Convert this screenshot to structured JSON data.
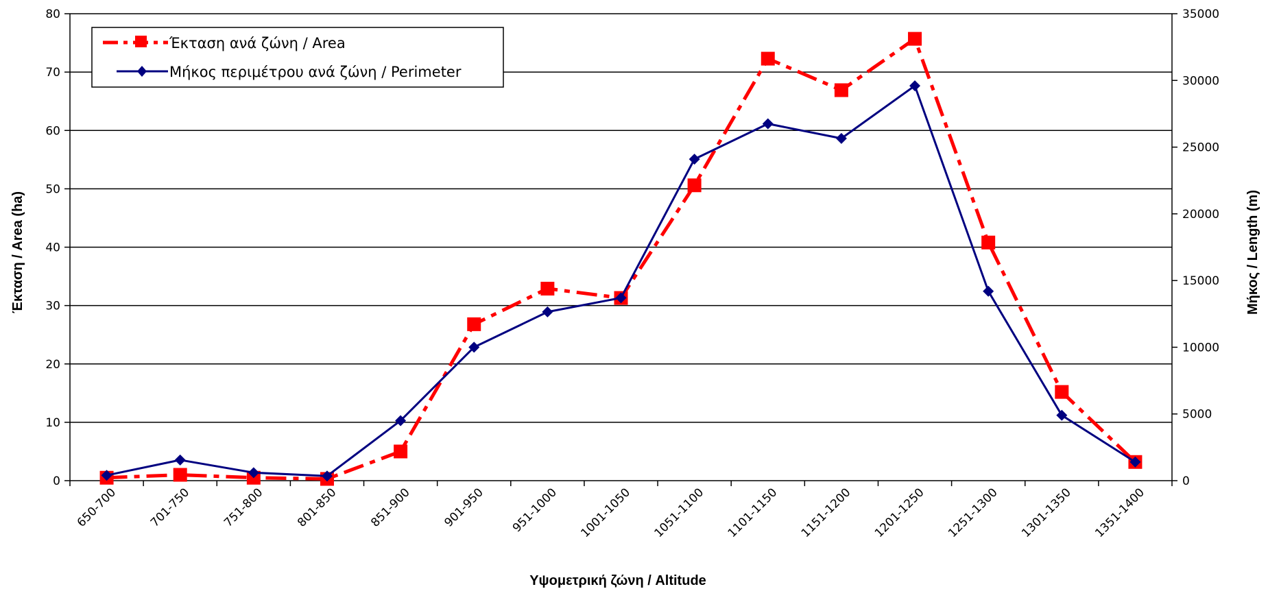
{
  "chart_data": {
    "type": "line",
    "categories": [
      "650-700",
      "701-750",
      "751-800",
      "801-850",
      "851-900",
      "901-950",
      "951-1000",
      "1001-1050",
      "1051-1100",
      "1101-1150",
      "1151-1200",
      "1201-1250",
      "1251-1300",
      "1301-1350",
      "1351-1400"
    ],
    "series": [
      {
        "name": "Έκταση ανά ζώνη / Area",
        "axis": "left",
        "color": "#ff0000",
        "line_style": "dash-dot",
        "marker": "square",
        "values": [
          0.5,
          1.0,
          0.5,
          0.3,
          5.0,
          26.8,
          32.9,
          31.3,
          50.6,
          72.3,
          66.9,
          75.7,
          40.8,
          15.2,
          3.2
        ]
      },
      {
        "name": "Μήκος περιμέτρου ανά ζώνη / Perimeter",
        "axis": "right",
        "color": "#000080",
        "line_style": "solid",
        "marker": "diamond",
        "values": [
          400,
          1550,
          600,
          350,
          4500,
          10000,
          12650,
          13700,
          24100,
          26750,
          25650,
          29600,
          14200,
          4900,
          1400
        ]
      }
    ],
    "xlabel": "Υψομετρική ζώνη / Altitude",
    "ylabel": "Έκταση / Area (ha)",
    "y2label": "Μήκος / Length (m)",
    "ylim": [
      0,
      80
    ],
    "y2lim": [
      0,
      35000
    ],
    "yticks": [
      "0",
      "10",
      "20",
      "30",
      "40",
      "50",
      "60",
      "70",
      "80"
    ],
    "y2ticks": [
      "0",
      "5000",
      "10000",
      "15000",
      "20000",
      "25000",
      "30000",
      "35000"
    ],
    "grid": "horizontal",
    "legend_position": "top-left"
  }
}
